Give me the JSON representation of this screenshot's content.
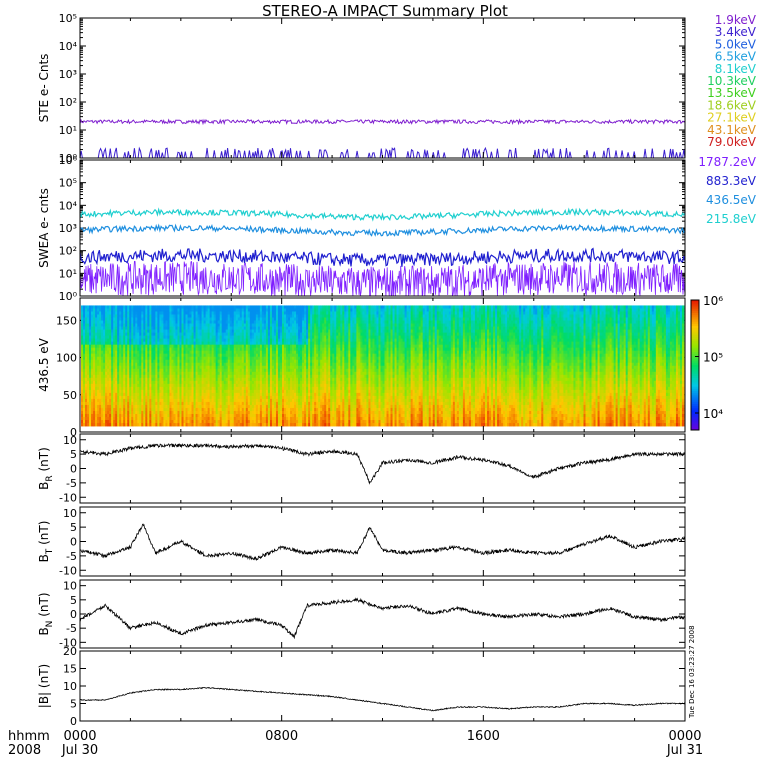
{
  "title": "STEREO-A IMPACT Summary Plot",
  "x_axis": {
    "label_line1": "hhmm",
    "label_line2": "2008",
    "ticks": [
      {
        "time": "0000",
        "date": "Jul 30",
        "hour": 0
      },
      {
        "time": "0800",
        "date": "",
        "hour": 8
      },
      {
        "time": "1600",
        "date": "",
        "hour": 16
      },
      {
        "time": "0000",
        "date": "Jul 31",
        "hour": 24
      }
    ],
    "range_hours": [
      0,
      24
    ]
  },
  "side_text": "Tue Dec 16 03:23:27 2008",
  "colors": {
    "ste_legend": [
      "#7f1fcf",
      "#3b1fcf",
      "#1f5fdf",
      "#1f9fdf",
      "#1fcfcf",
      "#1fcf5f",
      "#3fcf1f",
      "#9fcf1f",
      "#dfcf1f",
      "#df8f1f",
      "#cf1f1f"
    ],
    "swea_legend": [
      "#7f1fff",
      "#1f1fcf",
      "#1f8fdf",
      "#1fcfcf"
    ]
  },
  "chart_data": [
    {
      "type": "line",
      "ylabel": "STE e- Cnts",
      "yscale": "log",
      "ylim": [
        1,
        100000
      ],
      "ytick_labels": [
        "10⁰",
        "10¹",
        "10²",
        "10³",
        "10⁴",
        "10⁵"
      ],
      "legend_placement": "right",
      "series": [
        {
          "name": "1.9keV",
          "approx_level": 20
        },
        {
          "name": "3.4keV",
          "approx_level": 1
        },
        {
          "name": "5.0keV"
        },
        {
          "name": "6.5keV"
        },
        {
          "name": "8.1keV"
        },
        {
          "name": "10.3keV"
        },
        {
          "name": "13.5keV"
        },
        {
          "name": "18.6keV"
        },
        {
          "name": "27.1keV"
        },
        {
          "name": "43.1keV"
        },
        {
          "name": "79.0keV"
        }
      ]
    },
    {
      "type": "line",
      "ylabel": "SWEA e- cnts",
      "yscale": "log",
      "ylim": [
        1,
        1000000
      ],
      "ytick_labels": [
        "10⁰",
        "10¹",
        "10²",
        "10³",
        "10⁴",
        "10⁵",
        "10⁶"
      ],
      "legend_placement": "right",
      "series": [
        {
          "name": "1787.2eV",
          "approx_level": 5
        },
        {
          "name": "883.3eV",
          "approx_level": 50
        },
        {
          "name": "436.5eV",
          "approx_level": 800
        },
        {
          "name": "215.8eV",
          "approx_level": 4000
        }
      ]
    },
    {
      "type": "heatmap",
      "ylabel": "436.5 eV",
      "ylim": [
        0,
        180
      ],
      "yticks": [
        0,
        50,
        100,
        150
      ],
      "colorbar": {
        "scale": "log",
        "range": [
          5000,
          1000000
        ],
        "tick_labels": [
          "10⁴",
          "10⁵",
          "10⁶"
        ]
      }
    },
    {
      "type": "line",
      "ylabel_main": "B",
      "ylabel_sub": "R",
      "ylabel_unit": " (nT)",
      "ylim": [
        -12,
        12
      ],
      "yticks": [
        -10,
        -5,
        0,
        5,
        10
      ],
      "series": [
        {
          "x": [
            0,
            1,
            2,
            3,
            4,
            5,
            6,
            7,
            8,
            9,
            10,
            11,
            11.5,
            12,
            13,
            14,
            15,
            16,
            17,
            18,
            19,
            20,
            21,
            22,
            23,
            24
          ],
          "y": [
            6,
            5,
            7,
            8,
            8,
            8,
            7.5,
            8,
            7,
            5,
            6,
            5,
            -5,
            2,
            3,
            2,
            4,
            3,
            1,
            -3,
            0,
            2,
            3,
            5,
            5,
            5
          ]
        }
      ]
    },
    {
      "type": "line",
      "ylabel_main": "B",
      "ylabel_sub": "T",
      "ylabel_unit": " (nT)",
      "ylim": [
        -12,
        12
      ],
      "yticks": [
        -10,
        -5,
        0,
        5,
        10
      ],
      "series": [
        {
          "x": [
            0,
            1,
            2,
            2.5,
            3,
            4,
            5,
            6,
            7,
            8,
            9,
            10,
            11,
            11.5,
            12,
            13,
            14,
            15,
            16,
            17,
            18,
            19,
            20,
            21,
            22,
            23,
            24
          ],
          "y": [
            -3,
            -5,
            -2,
            6,
            -4,
            0,
            -5,
            -4,
            -6,
            -2,
            -4,
            -3,
            -4,
            5,
            -3,
            -4,
            -3,
            -2,
            -4,
            -3,
            -4,
            -4,
            -1,
            2,
            -2,
            0,
            1
          ]
        }
      ]
    },
    {
      "type": "line",
      "ylabel_main": "B",
      "ylabel_sub": "N",
      "ylabel_unit": " (nT)",
      "ylim": [
        -12,
        12
      ],
      "yticks": [
        -10,
        -5,
        0,
        5,
        10
      ],
      "series": [
        {
          "x": [
            0,
            1,
            2,
            3,
            4,
            5,
            6,
            7,
            8,
            8.5,
            9,
            10,
            11,
            12,
            13,
            14,
            15,
            16,
            17,
            18,
            19,
            20,
            21,
            22,
            23,
            24
          ],
          "y": [
            -2,
            3,
            -5,
            -3,
            -7,
            -4,
            -3,
            -2,
            -4,
            -8,
            3,
            4,
            5,
            2,
            3,
            0,
            2,
            0,
            -1,
            0,
            -1,
            0,
            2,
            -1,
            -2,
            -1
          ]
        }
      ]
    },
    {
      "type": "line",
      "ylabel": "|B| (nT)",
      "ylim": [
        0,
        20
      ],
      "yticks": [
        0,
        5,
        10,
        15,
        20
      ],
      "series": [
        {
          "x": [
            0,
            1,
            2,
            3,
            4,
            5,
            6,
            7,
            8,
            9,
            10,
            11,
            12,
            13,
            14,
            15,
            16,
            17,
            18,
            19,
            20,
            21,
            22,
            23,
            24
          ],
          "y": [
            6,
            6,
            8,
            9,
            9,
            9.5,
            9,
            8.5,
            8,
            7.5,
            7,
            6,
            5,
            4,
            3,
            4,
            4,
            3.5,
            4,
            4,
            5,
            5,
            4.5,
            5,
            5
          ]
        }
      ]
    }
  ]
}
